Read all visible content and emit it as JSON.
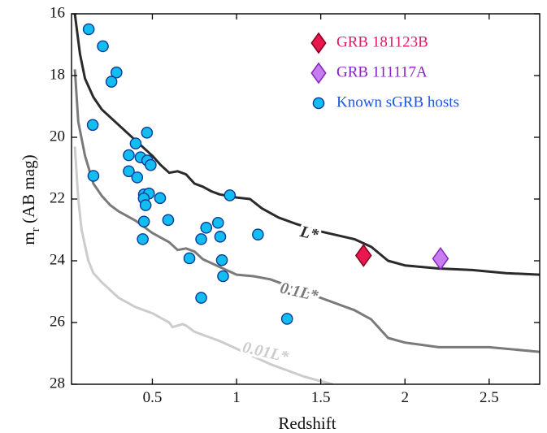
{
  "chart_data": {
    "type": "scatter",
    "xlabel": "Redshift",
    "ylabel": "m_r (AB mag)",
    "ylabel_main": "m",
    "ylabel_sub": "r",
    "ylabel_rest": " (AB mag)",
    "xlim": [
      0.02,
      2.8
    ],
    "ylim": [
      28,
      16
    ],
    "y_inverted": true,
    "grid": false,
    "legend_position": "top-right",
    "xticks": [
      0.5,
      1,
      1.5,
      2,
      2.5
    ],
    "xtick_labels": [
      "0.5",
      "1",
      "1.5",
      "2",
      "2.5"
    ],
    "yticks": [
      16,
      18,
      20,
      22,
      24,
      26,
      28
    ],
    "ytick_labels": [
      "16",
      "18",
      "20",
      "22",
      "24",
      "26",
      "28"
    ],
    "curves": [
      {
        "label": "L*",
        "color": "#2a2a2a",
        "label_at": [
          1.43,
          23.15
        ],
        "points": [
          [
            0.04,
            16.0
          ],
          [
            0.07,
            17.3
          ],
          [
            0.1,
            18.1
          ],
          [
            0.15,
            18.7
          ],
          [
            0.2,
            19.1
          ],
          [
            0.3,
            19.6
          ],
          [
            0.4,
            20.1
          ],
          [
            0.5,
            20.6
          ],
          [
            0.55,
            20.9
          ],
          [
            0.6,
            21.15
          ],
          [
            0.65,
            21.1
          ],
          [
            0.7,
            21.2
          ],
          [
            0.75,
            21.5
          ],
          [
            0.8,
            21.6
          ],
          [
            0.85,
            21.75
          ],
          [
            0.9,
            21.85
          ],
          [
            0.95,
            21.9
          ],
          [
            1.0,
            21.95
          ],
          [
            1.08,
            22.0
          ],
          [
            1.15,
            22.3
          ],
          [
            1.25,
            22.6
          ],
          [
            1.35,
            22.8
          ],
          [
            1.5,
            23.05
          ],
          [
            1.7,
            23.3
          ],
          [
            1.8,
            23.55
          ],
          [
            1.9,
            24.0
          ],
          [
            2.0,
            24.15
          ],
          [
            2.1,
            24.2
          ],
          [
            2.2,
            24.25
          ],
          [
            2.4,
            24.3
          ],
          [
            2.6,
            24.4
          ],
          [
            2.8,
            24.45
          ]
        ]
      },
      {
        "label": "0.1L*",
        "color": "#7a7a7a",
        "label_at": [
          1.37,
          25.05
        ],
        "points": [
          [
            0.04,
            17.8
          ],
          [
            0.06,
            19.5
          ],
          [
            0.1,
            20.6
          ],
          [
            0.15,
            21.5
          ],
          [
            0.2,
            21.9
          ],
          [
            0.25,
            22.2
          ],
          [
            0.3,
            22.4
          ],
          [
            0.4,
            22.7
          ],
          [
            0.5,
            23.1
          ],
          [
            0.6,
            23.4
          ],
          [
            0.65,
            23.65
          ],
          [
            0.7,
            23.6
          ],
          [
            0.75,
            23.7
          ],
          [
            0.8,
            23.95
          ],
          [
            0.9,
            24.2
          ],
          [
            1.0,
            24.45
          ],
          [
            1.1,
            24.5
          ],
          [
            1.2,
            24.6
          ],
          [
            1.3,
            24.8
          ],
          [
            1.5,
            25.2
          ],
          [
            1.7,
            25.6
          ],
          [
            1.8,
            25.9
          ],
          [
            1.9,
            26.5
          ],
          [
            2.0,
            26.65
          ],
          [
            2.2,
            26.8
          ],
          [
            2.5,
            26.8
          ],
          [
            2.8,
            26.95
          ]
        ]
      },
      {
        "label": "0.01L*",
        "color": "#cccccc",
        "label_at": [
          1.17,
          27.0
        ],
        "points": [
          [
            0.04,
            20.3
          ],
          [
            0.06,
            22.0
          ],
          [
            0.08,
            23.0
          ],
          [
            0.12,
            24.0
          ],
          [
            0.15,
            24.4
          ],
          [
            0.2,
            24.7
          ],
          [
            0.25,
            24.95
          ],
          [
            0.3,
            25.2
          ],
          [
            0.35,
            25.35
          ],
          [
            0.4,
            25.5
          ],
          [
            0.5,
            25.7
          ],
          [
            0.55,
            25.85
          ],
          [
            0.6,
            26.0
          ],
          [
            0.62,
            26.15
          ],
          [
            0.65,
            26.1
          ],
          [
            0.68,
            26.05
          ],
          [
            0.7,
            26.1
          ],
          [
            0.75,
            26.3
          ],
          [
            0.8,
            26.4
          ],
          [
            0.9,
            26.6
          ],
          [
            1.0,
            26.85
          ],
          [
            1.1,
            27.1
          ],
          [
            1.2,
            27.35
          ],
          [
            1.3,
            27.55
          ],
          [
            1.4,
            27.75
          ],
          [
            1.5,
            27.9
          ],
          [
            1.57,
            28.0
          ]
        ]
      }
    ],
    "series": [
      {
        "name": "GRB 181123B",
        "marker": "diamond",
        "color": "#e8174f",
        "edge": "#8a0020",
        "text_color": "#e01a6a",
        "points": [
          [
            1.754,
            23.83
          ]
        ]
      },
      {
        "name": "GRB 111117A",
        "marker": "diamond",
        "color": "#c77cf0",
        "edge": "#8a2ac0",
        "text_color": "#8a20c8",
        "points": [
          [
            2.211,
            23.93
          ]
        ]
      },
      {
        "name": "Known sGRB hosts",
        "marker": "circle",
        "color": "#12bdf0",
        "edge": "#0a3a9a",
        "text_color": "#1a55e8",
        "points": [
          [
            0.122,
            16.5
          ],
          [
            0.206,
            17.05
          ],
          [
            0.287,
            17.9
          ],
          [
            0.257,
            18.2
          ],
          [
            0.146,
            19.6
          ],
          [
            0.468,
            19.85
          ],
          [
            0.36,
            20.58
          ],
          [
            0.401,
            20.2
          ],
          [
            0.43,
            20.65
          ],
          [
            0.47,
            20.75
          ],
          [
            0.49,
            20.9
          ],
          [
            0.36,
            21.1
          ],
          [
            0.41,
            21.3
          ],
          [
            0.15,
            21.25
          ],
          [
            0.45,
            21.85
          ],
          [
            0.48,
            21.82
          ],
          [
            0.449,
            21.98
          ],
          [
            0.546,
            21.97
          ],
          [
            0.46,
            22.2
          ],
          [
            0.96,
            21.88
          ],
          [
            0.594,
            22.68
          ],
          [
            0.45,
            22.73
          ],
          [
            0.443,
            23.3
          ],
          [
            0.82,
            22.93
          ],
          [
            0.89,
            22.77
          ],
          [
            0.79,
            23.3
          ],
          [
            0.903,
            23.22
          ],
          [
            1.127,
            23.15
          ],
          [
            0.72,
            23.92
          ],
          [
            0.913,
            23.98
          ],
          [
            0.92,
            24.5
          ],
          [
            0.79,
            25.2
          ],
          [
            1.3,
            25.88
          ]
        ]
      }
    ]
  }
}
